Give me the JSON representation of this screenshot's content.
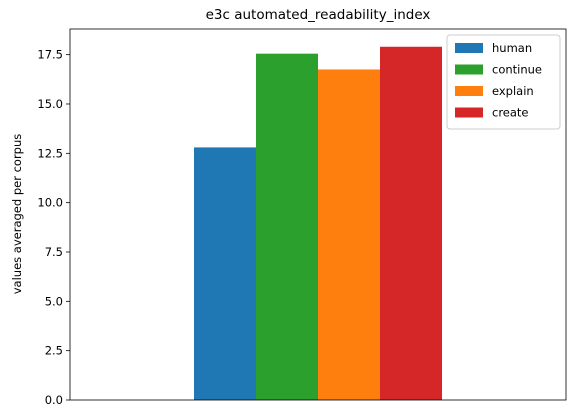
{
  "chart_data": {
    "type": "bar",
    "title": "e3c automated_readability_index",
    "xlabel": "",
    "ylabel": "values averaged per corpus",
    "categories": [
      ""
    ],
    "ylim": [
      0,
      18.8
    ],
    "yticks": [
      0.0,
      2.5,
      5.0,
      7.5,
      10.0,
      12.5,
      15.0,
      17.5
    ],
    "ytick_labels": [
      "0.0",
      "2.5",
      "5.0",
      "7.5",
      "10.0",
      "12.5",
      "15.0",
      "17.5"
    ],
    "grid": false,
    "legend_position": "top-right",
    "series": [
      {
        "name": "human",
        "values": [
          12.8
        ],
        "color": "#1f77b4"
      },
      {
        "name": "continue",
        "values": [
          17.55
        ],
        "color": "#2ca02c"
      },
      {
        "name": "explain",
        "values": [
          16.75
        ],
        "color": "#ff7f0e"
      },
      {
        "name": "create",
        "values": [
          17.9
        ],
        "color": "#d62728"
      }
    ]
  }
}
